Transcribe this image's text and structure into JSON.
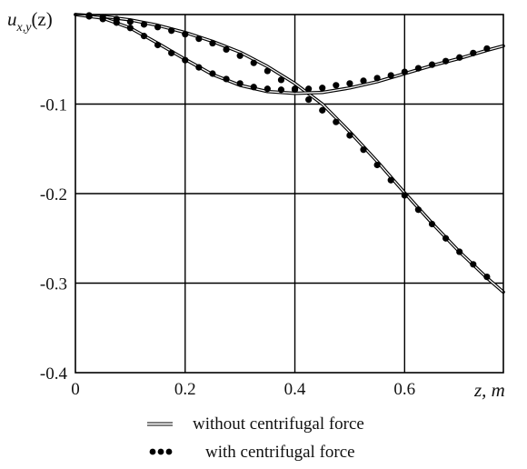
{
  "chart_data": {
    "type": "line",
    "ylabel_main": "u",
    "ylabel_sub": "x,y",
    "ylabel_arg": "(z)",
    "xlabel": "z, m",
    "xlim": [
      0,
      0.78
    ],
    "ylim": [
      -0.4,
      0
    ],
    "grid": true,
    "legend_placement": "bottom",
    "x_ticks": [
      {
        "value": 0,
        "label": "0"
      },
      {
        "value": 0.2,
        "label": "0.2"
      },
      {
        "value": 0.4,
        "label": "0.4"
      },
      {
        "value": 0.6,
        "label": "0.6"
      }
    ],
    "y_ticks": [
      {
        "value": -0.1,
        "label": "-0.1"
      },
      {
        "value": -0.2,
        "label": "-0.2"
      },
      {
        "value": -0.3,
        "label": "-0.3"
      },
      {
        "value": -0.4,
        "label": "-0.4"
      }
    ],
    "legend": [
      {
        "label": "without centrifugal force",
        "style": "line"
      },
      {
        "label": "with centrifugal force",
        "style": "dots"
      }
    ],
    "series": [
      {
        "style": "line",
        "x": [
          0,
          0.05,
          0.1,
          0.15,
          0.2,
          0.25,
          0.3,
          0.35,
          0.4,
          0.45,
          0.5,
          0.55,
          0.6,
          0.65,
          0.7,
          0.75,
          0.78
        ],
        "y": [
          0,
          -0.002,
          -0.006,
          -0.012,
          -0.02,
          -0.03,
          -0.042,
          -0.058,
          -0.077,
          -0.1,
          -0.131,
          -0.164,
          -0.199,
          -0.233,
          -0.265,
          -0.294,
          -0.31
        ]
      },
      {
        "style": "line",
        "x": [
          0,
          0.05,
          0.1,
          0.15,
          0.2,
          0.25,
          0.3,
          0.35,
          0.4,
          0.45,
          0.5,
          0.55,
          0.6,
          0.65,
          0.7,
          0.75,
          0.78
        ],
        "y": [
          0,
          -0.004,
          -0.015,
          -0.032,
          -0.05,
          -0.067,
          -0.079,
          -0.086,
          -0.088,
          -0.087,
          -0.082,
          -0.075,
          -0.066,
          -0.057,
          -0.049,
          -0.04,
          -0.035
        ]
      },
      {
        "style": "dots",
        "x": [
          0.025,
          0.05,
          0.075,
          0.1,
          0.125,
          0.15,
          0.175,
          0.2,
          0.225,
          0.25,
          0.275,
          0.3,
          0.325,
          0.35,
          0.375,
          0.4,
          0.425,
          0.45,
          0.475,
          0.5,
          0.525,
          0.55,
          0.575,
          0.6,
          0.625,
          0.65,
          0.675,
          0.7,
          0.725,
          0.75
        ],
        "y": [
          -0.001,
          -0.003,
          -0.005,
          -0.008,
          -0.011,
          -0.014,
          -0.018,
          -0.022,
          -0.027,
          -0.032,
          -0.039,
          -0.046,
          -0.054,
          -0.063,
          -0.073,
          -0.083,
          -0.095,
          -0.107,
          -0.12,
          -0.135,
          -0.151,
          -0.168,
          -0.185,
          -0.202,
          -0.218,
          -0.234,
          -0.25,
          -0.265,
          -0.279,
          -0.293
        ]
      },
      {
        "style": "dots",
        "x": [
          0.025,
          0.05,
          0.075,
          0.1,
          0.125,
          0.15,
          0.175,
          0.2,
          0.225,
          0.25,
          0.275,
          0.3,
          0.325,
          0.35,
          0.375,
          0.4,
          0.425,
          0.45,
          0.475,
          0.5,
          0.525,
          0.55,
          0.575,
          0.6,
          0.625,
          0.65,
          0.675,
          0.7,
          0.725,
          0.75
        ],
        "y": [
          -0.002,
          -0.005,
          -0.009,
          -0.015,
          -0.024,
          -0.034,
          -0.043,
          -0.051,
          -0.059,
          -0.066,
          -0.072,
          -0.077,
          -0.081,
          -0.083,
          -0.084,
          -0.084,
          -0.083,
          -0.082,
          -0.079,
          -0.077,
          -0.074,
          -0.071,
          -0.068,
          -0.064,
          -0.06,
          -0.056,
          -0.052,
          -0.048,
          -0.043,
          -0.038
        ]
      }
    ]
  }
}
